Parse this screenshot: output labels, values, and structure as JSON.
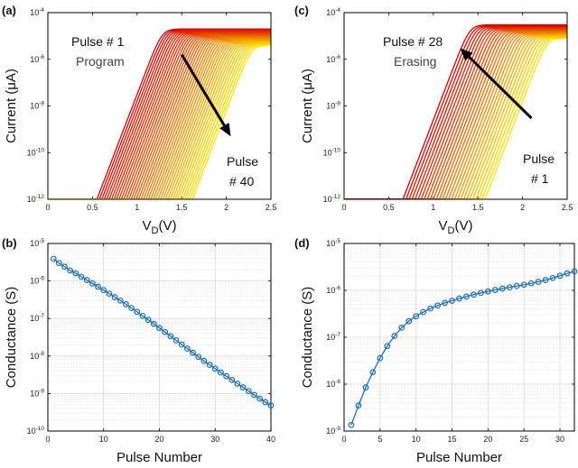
{
  "panels": {
    "a": {
      "label": "(a)"
    },
    "b": {
      "label": "(b)"
    },
    "c": {
      "label": "(c)"
    },
    "d": {
      "label": "(d)"
    }
  },
  "annotations": {
    "a_pulse1_line1": "Pulse # 1",
    "a_pulse1_line2": "Program",
    "a_pulse40_line1": "Pulse",
    "a_pulse40_line2": "# 40",
    "c_pulse28_line1": "Pulse # 28",
    "c_pulse28_line2": "Erasing",
    "c_pulse1_line1": "Pulse",
    "c_pulse1_line2": "# 1"
  },
  "colors": {
    "curve_start": "#d80000",
    "curve_end": "#ffe600",
    "marker": "#1f6fb4",
    "arrow": "#000000"
  },
  "chart_data": [
    {
      "panel": "a",
      "type": "line",
      "xlabel": "V_D(V)",
      "ylabel": "Current (μA)",
      "xlim": [
        0,
        2.5
      ],
      "ylim": [
        1e-12,
        0.0001
      ],
      "yscale": "log",
      "grid": false,
      "xticks": [
        "0",
        "0.5",
        "1",
        "1.5",
        "2",
        "2.5"
      ],
      "yticks": [
        "10^-12",
        "10^-10",
        "10^-8",
        "10^-6",
        "10^-4"
      ],
      "curve_count": 40,
      "curve_model": {
        "floor": 1e-12,
        "threshold_start_v": 0.55,
        "threshold_end_v": 1.62,
        "subthreshold_decades_per_volt": 10,
        "saturation_start": 2e-05,
        "saturation_end": 4e-06,
        "saturation_width": 0.7
      },
      "arrow": {
        "from": [
          1.5,
          1.6e-06
        ],
        "to": [
          2.05,
          5e-10
        ]
      }
    },
    {
      "panel": "b",
      "type": "line",
      "xlabel": "Pulse Number",
      "ylabel": "Conductance (S)",
      "xlim": [
        0,
        40
      ],
      "ylim": [
        1e-10,
        1e-05
      ],
      "yscale": "log",
      "grid": true,
      "xticks": [
        "0",
        "10",
        "20",
        "30",
        "40"
      ],
      "yticks": [
        "10^-10",
        "10^-9",
        "10^-8",
        "10^-7",
        "10^-6",
        "10^-5"
      ],
      "x": [
        1,
        2,
        3,
        4,
        5,
        6,
        7,
        8,
        9,
        10,
        11,
        12,
        13,
        14,
        15,
        16,
        17,
        18,
        19,
        20,
        21,
        22,
        23,
        24,
        25,
        26,
        27,
        28,
        29,
        30,
        31,
        32,
        33,
        34,
        35,
        36,
        37,
        38,
        39,
        40
      ],
      "values": [
        3.9e-06,
        3e-06,
        2.4e-06,
        1.9e-06,
        1.6e-06,
        1.3e-06,
        1.06e-06,
        8.6e-07,
        7e-07,
        5.7e-07,
        4.6e-07,
        3.7e-07,
        3e-07,
        2.4e-07,
        1.9e-07,
        1.5e-07,
        1.17e-07,
        9.2e-08,
        7.2e-08,
        5.6e-08,
        4.35e-08,
        3.38e-08,
        2.62e-08,
        2.03e-08,
        1.57e-08,
        1.22e-08,
        9.5e-09,
        7.4e-09,
        5.8e-09,
        4.6e-09,
        3.65e-09,
        2.9e-09,
        2.3e-09,
        1.83e-09,
        1.46e-09,
        1.16e-09,
        9.2e-10,
        7.3e-10,
        5.9e-10,
        4.8e-10
      ]
    },
    {
      "panel": "c",
      "type": "line",
      "xlabel": "V_D(V)",
      "ylabel": "Current (μA)",
      "xlim": [
        0,
        2.5
      ],
      "ylim": [
        1e-12,
        0.0001
      ],
      "yscale": "log",
      "grid": false,
      "xticks": [
        "0",
        "0.5",
        "1",
        "1.5",
        "2",
        "2.5"
      ],
      "yticks": [
        "10^-12",
        "10^-10",
        "10^-8",
        "10^-6",
        "10^-4"
      ],
      "curve_count": 28,
      "curve_model": {
        "floor": 1e-12,
        "threshold_start_v": 1.58,
        "threshold_end_v": 0.66,
        "subthreshold_decades_per_volt": 10,
        "saturation_start": 8e-06,
        "saturation_end": 3e-05,
        "saturation_width": 0.7
      },
      "arrow": {
        "from": [
          2.1,
          3e-09
        ],
        "to": [
          1.3,
          3e-06
        ]
      }
    },
    {
      "panel": "d",
      "type": "line",
      "xlabel": "Pulse Number",
      "ylabel": "Conductance (S)",
      "xlim": [
        0,
        32
      ],
      "ylim": [
        1e-09,
        1e-05
      ],
      "yscale": "log",
      "grid": true,
      "xticks": [
        "0",
        "5",
        "10",
        "15",
        "20",
        "25",
        "30"
      ],
      "yticks": [
        "10^-9",
        "10^-8",
        "10^-7",
        "10^-6",
        "10^-5"
      ],
      "x": [
        1,
        2,
        3,
        4,
        5,
        6,
        7,
        8,
        9,
        10,
        11,
        12,
        13,
        14,
        15,
        16,
        17,
        18,
        19,
        20,
        21,
        22,
        23,
        24,
        25,
        26,
        27,
        28,
        29,
        30,
        31,
        32
      ],
      "values": [
        1.35e-09,
        3.5e-09,
        8.5e-09,
        1.8e-08,
        3.6e-08,
        6.5e-08,
        1.07e-07,
        1.6e-07,
        2.2e-07,
        2.8e-07,
        3.45e-07,
        4.1e-07,
        4.75e-07,
        5.4e-07,
        6e-07,
        6.7e-07,
        7.4e-07,
        8.1e-07,
        8.8e-07,
        9.5e-07,
        1.02e-06,
        1.09e-06,
        1.16e-06,
        1.24e-06,
        1.32e-06,
        1.41e-06,
        1.52e-06,
        1.66e-06,
        1.84e-06,
        2.05e-06,
        2.3e-06,
        2.55e-06
      ]
    }
  ]
}
